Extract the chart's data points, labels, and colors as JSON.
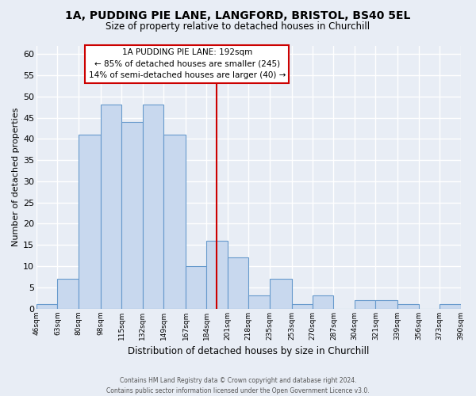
{
  "title1": "1A, PUDDING PIE LANE, LANGFORD, BRISTOL, BS40 5EL",
  "title2": "Size of property relative to detached houses in Churchill",
  "xlabel": "Distribution of detached houses by size in Churchill",
  "ylabel": "Number of detached properties",
  "bar_color": "#c8d8ee",
  "bar_edge_color": "#6699cc",
  "background_color": "#e8edf5",
  "plot_bg_color": "#e8edf5",
  "grid_color": "#ffffff",
  "bin_edges": [
    46,
    63,
    80,
    98,
    115,
    132,
    149,
    167,
    184,
    201,
    218,
    235,
    253,
    270,
    287,
    304,
    321,
    339,
    356,
    373,
    390
  ],
  "bin_labels": [
    "46sqm",
    "63sqm",
    "80sqm",
    "98sqm",
    "115sqm",
    "132sqm",
    "149sqm",
    "167sqm",
    "184sqm",
    "201sqm",
    "218sqm",
    "235sqm",
    "253sqm",
    "270sqm",
    "287sqm",
    "304sqm",
    "321sqm",
    "339sqm",
    "356sqm",
    "373sqm",
    "390sqm"
  ],
  "counts": [
    1,
    7,
    41,
    48,
    44,
    48,
    41,
    10,
    16,
    12,
    3,
    7,
    1,
    3,
    0,
    2,
    2,
    1,
    0,
    1
  ],
  "property_line_x": 192,
  "property_line_color": "#cc0000",
  "annotation_title": "1A PUDDING PIE LANE: 192sqm",
  "annotation_line1": "← 85% of detached houses are smaller (245)",
  "annotation_line2": "14% of semi-detached houses are larger (40) →",
  "annotation_box_color": "#ffffff",
  "annotation_box_edge": "#cc0000",
  "ylim": [
    0,
    62
  ],
  "yticks": [
    0,
    5,
    10,
    15,
    20,
    25,
    30,
    35,
    40,
    45,
    50,
    55,
    60
  ],
  "footer1": "Contains HM Land Registry data © Crown copyright and database right 2024.",
  "footer2": "Contains public sector information licensed under the Open Government Licence v3.0."
}
